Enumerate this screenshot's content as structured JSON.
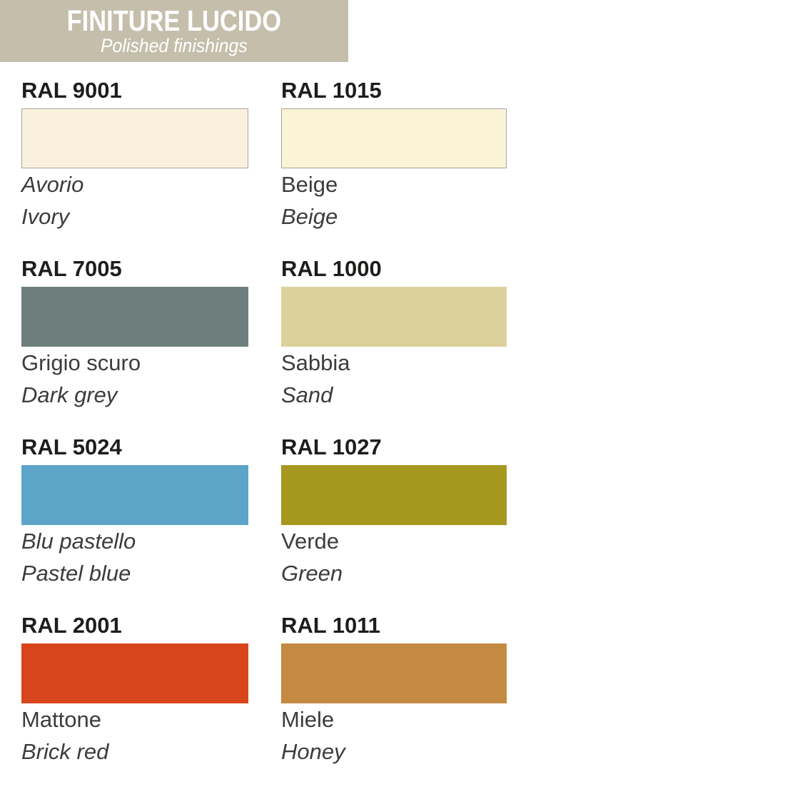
{
  "header": {
    "title": "FINITURE LUCIDO",
    "subtitle": "Polished finishings",
    "bg_color": "#c4beab",
    "text_color": "#ffffff"
  },
  "swatches": [
    {
      "ral": "RAL 9001",
      "color": "#f9f0de",
      "bordered": true,
      "italian": "Avorio",
      "italian_italic": true,
      "english": "Ivory"
    },
    {
      "ral": "RAL 1015",
      "color": "#fbf3d6",
      "bordered": true,
      "italian": "Beige",
      "italian_italic": false,
      "english": "Beige"
    },
    {
      "ral": "RAL 7005",
      "color": "#6e7e7c",
      "bordered": false,
      "italian": "Grigio scuro",
      "italian_italic": false,
      "english": "Dark grey"
    },
    {
      "ral": "RAL 1000",
      "color": "#ddd19b",
      "bordered": false,
      "italian": "Sabbia",
      "italian_italic": false,
      "english": "Sand"
    },
    {
      "ral": "RAL 5024",
      "color": "#5ca4c8",
      "bordered": false,
      "italian": "Blu pastello",
      "italian_italic": true,
      "english": "Pastel blue"
    },
    {
      "ral": "RAL 1027",
      "color": "#a6981f",
      "bordered": false,
      "italian": "Verde",
      "italian_italic": false,
      "english": "Green"
    },
    {
      "ral": "RAL 2001",
      "color": "#d8451c",
      "bordered": false,
      "italian": "Mattone",
      "italian_italic": false,
      "english": "Brick red"
    },
    {
      "ral": "RAL 1011",
      "color": "#c48a41",
      "bordered": false,
      "italian": "Miele",
      "italian_italic": false,
      "english": "Honey"
    }
  ]
}
